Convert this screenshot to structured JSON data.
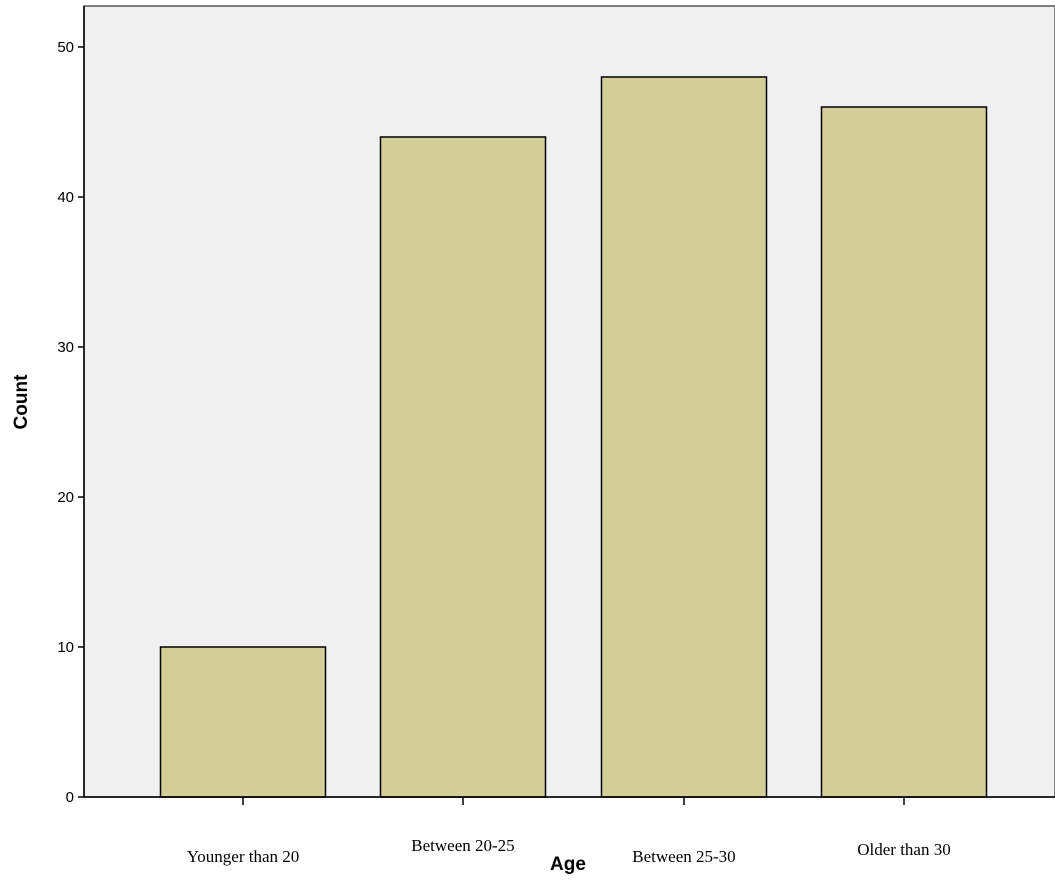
{
  "chart_data": {
    "type": "bar",
    "categories": [
      "Younger than 20",
      "Between 20-25",
      "Between 25-30",
      "Older than 30"
    ],
    "values": [
      10,
      44,
      48,
      46
    ],
    "title": "",
    "xlabel": "Age",
    "ylabel": "Count",
    "ylim": [
      0,
      52
    ],
    "yticks": [
      0,
      10,
      20,
      30,
      40,
      50
    ],
    "grid": false,
    "legend": "none",
    "bar_color": "#d4cf98",
    "plot_background": "#f0f0f0"
  }
}
